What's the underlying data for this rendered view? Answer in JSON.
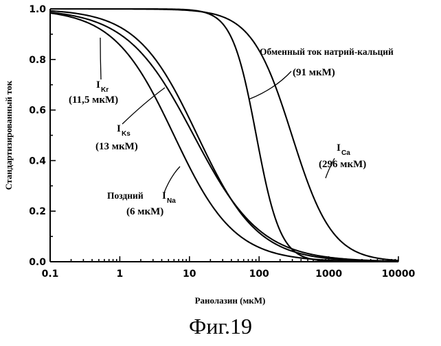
{
  "chart_data": {
    "type": "line",
    "xscale": "log",
    "xlim": [
      0.1,
      10000
    ],
    "ylim": [
      0.0,
      1.0
    ],
    "xlabel": "Ранолазин (мкМ)",
    "ylabel": "Стандартизированный ток",
    "xticks": [
      "0.1",
      "1",
      "10",
      "100",
      "1000",
      "10000"
    ],
    "yticks": [
      "0.0",
      "0.2",
      "0.4",
      "0.6",
      "0.8",
      "1.0"
    ],
    "grid": false,
    "series": [
      {
        "ic50": 6,
        "hill": 1.0,
        "label_symbol": "I",
        "label_sub": "Na",
        "label_prefix": "Поздний",
        "label_conc": "(6 мкМ)"
      },
      {
        "ic50": 11.5,
        "hill": 0.9,
        "label_symbol": "I",
        "label_sub": "Kr",
        "label_conc": "(11,5 мкМ)"
      },
      {
        "ic50": 13,
        "hill": 1.0,
        "label_symbol": "I",
        "label_sub": "Ks",
        "label_conc": "(13 мкМ)"
      },
      {
        "ic50": 91,
        "hill": 2.5,
        "label_text": "Обменный ток натрий-кальций",
        "label_conc": "(91 мкМ)"
      },
      {
        "ic50": 296,
        "hill": 1.5,
        "label_symbol": "I",
        "label_sub": "Ca",
        "label_conc": "(296 мкМ)"
      }
    ]
  },
  "caption": "Фиг.19"
}
